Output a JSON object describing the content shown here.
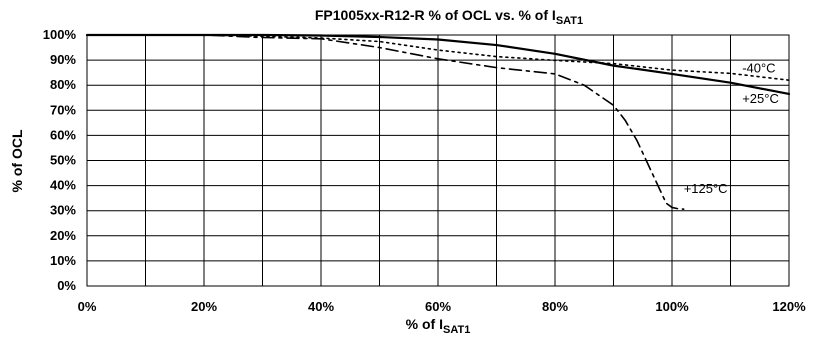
{
  "chart_data": {
    "type": "line",
    "title": "FP1005xx-R12-R  % of OCL vs. % of I",
    "title_subscript": "SAT1",
    "xlabel": "% of I",
    "xlabel_subscript": "SAT1",
    "ylabel": "% of OCL",
    "xlim": [
      0,
      120
    ],
    "ylim": [
      0,
      100
    ],
    "x_ticks": [
      0,
      20,
      40,
      60,
      80,
      100,
      120
    ],
    "x_tick_labels": [
      "0%",
      "20%",
      "40%",
      "60%",
      "80%",
      "100%",
      "120%"
    ],
    "y_ticks": [
      0,
      10,
      20,
      30,
      40,
      50,
      60,
      70,
      80,
      90,
      100
    ],
    "y_tick_labels": [
      "0%",
      "10%",
      "20%",
      "30%",
      "40%",
      "50%",
      "60%",
      "70%",
      "80%",
      "90%",
      "100%"
    ],
    "grid": true,
    "minor_x_gridlines": [
      10,
      30,
      50,
      70,
      90,
      110
    ],
    "series": [
      {
        "label": "+25°C",
        "style": "solid",
        "x": [
          0,
          10,
          20,
          30,
          40,
          50,
          60,
          70,
          80,
          90,
          100,
          110,
          120
        ],
        "y": [
          100,
          100,
          100,
          100,
          99.8,
          99.2,
          98.2,
          96,
          92.5,
          87.8,
          84.5,
          81,
          76.5
        ]
      },
      {
        "label": "-40°C",
        "style": "dotted",
        "x": [
          0,
          10,
          20,
          30,
          40,
          50,
          60,
          70,
          80,
          90,
          100,
          110,
          120
        ],
        "y": [
          100,
          100,
          100,
          99.5,
          98.8,
          97.4,
          94,
          91.4,
          89.9,
          88.6,
          86,
          84.7,
          82
        ]
      },
      {
        "label": "+125°C",
        "style": "dashdot",
        "x": [
          0,
          10,
          20,
          30,
          40,
          50,
          60,
          70,
          80,
          85,
          90,
          92,
          94,
          96,
          98,
          99,
          100,
          101,
          102
        ],
        "y": [
          100,
          100,
          100,
          99,
          98.5,
          95,
          90.5,
          87,
          84.5,
          80,
          72,
          66,
          58,
          48,
          38,
          33,
          31.3,
          30.8,
          30.6
        ]
      }
    ],
    "annotations": [
      {
        "text": "-40°C",
        "x": 112,
        "y": 85
      },
      {
        "text": "+25°C",
        "x": 112,
        "y": 73
      },
      {
        "text": "+125°C",
        "x": 102,
        "y": 37
      }
    ]
  }
}
